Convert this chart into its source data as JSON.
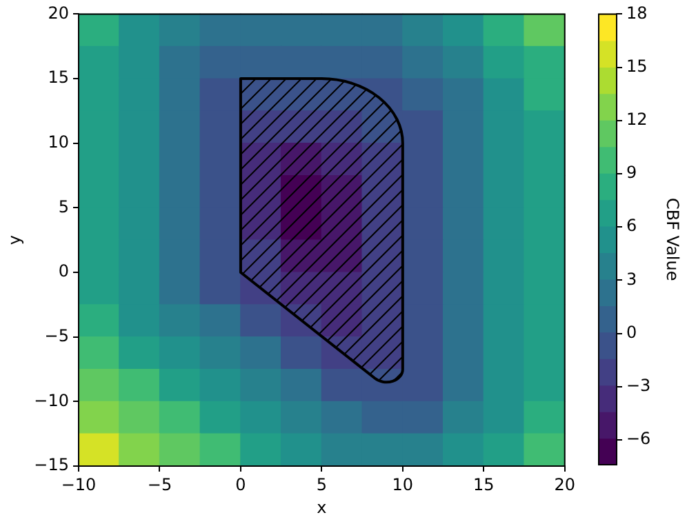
{
  "chart_data": {
    "type": "heatmap",
    "xlabel": "x",
    "ylabel": "y",
    "clabel": "CBF Value",
    "x": [
      -8.75,
      -6.25,
      -3.75,
      -1.25,
      1.25,
      3.75,
      6.25,
      8.75,
      11.25,
      13.75,
      16.25,
      18.75
    ],
    "y": [
      18.75,
      16.25,
      13.75,
      11.25,
      8.75,
      6.25,
      3.75,
      1.25,
      -1.25,
      -3.75,
      -6.25,
      -8.75,
      -11.25,
      -13.75
    ],
    "xlim": [
      -10,
      20
    ],
    "xticks": [
      {
        "value": -10,
        "label": "−10"
      },
      {
        "value": -5,
        "label": "−5"
      },
      0,
      5,
      10,
      15,
      20
    ],
    "ylim": [
      -15,
      20
    ],
    "yticks": [
      {
        "value": -15,
        "label": "−15"
      },
      {
        "value": -10,
        "label": "−10"
      },
      {
        "value": -5,
        "label": "−5"
      },
      0,
      5,
      10,
      15,
      20
    ],
    "clim": [
      -7.4,
      18
    ],
    "cticks": [
      {
        "value": -6,
        "label": "−6"
      },
      {
        "value": -3,
        "label": "−3"
      },
      0,
      3,
      6,
      9,
      12,
      15,
      18
    ],
    "cells": [
      [
        8.2,
        5.7,
        3.5,
        2.1,
        1.8,
        1.8,
        1.9,
        2.7,
        4.0,
        5.8,
        7.9,
        11.0
      ],
      [
        7.4,
        4.7,
        2.0,
        0.3,
        0.5,
        0.5,
        0.6,
        1.2,
        1.9,
        4.0,
        6.4,
        8.8
      ],
      [
        7.3,
        4.6,
        1.8,
        -0.9,
        -0.8,
        -0.8,
        -0.8,
        -1.0,
        0.2,
        2.7,
        5.2,
        7.9
      ],
      [
        7.3,
        4.6,
        1.8,
        -0.9,
        -2.2,
        -2.5,
        -2.2,
        -1.0,
        -0.8,
        1.9,
        4.7,
        7.4
      ],
      [
        7.3,
        4.6,
        1.8,
        -0.9,
        -3.0,
        -5.5,
        -4.0,
        -2.0,
        -0.9,
        1.8,
        4.6,
        7.3
      ],
      [
        7.3,
        4.6,
        1.8,
        -0.9,
        -3.2,
        -6.5,
        -4.8,
        -2.0,
        -0.9,
        1.8,
        4.6,
        7.3
      ],
      [
        7.3,
        4.6,
        1.8,
        -0.9,
        -3.2,
        -6.3,
        -5.0,
        -2.2,
        -0.9,
        1.8,
        4.6,
        7.3
      ],
      [
        7.3,
        4.6,
        1.8,
        -0.9,
        -2.8,
        -4.8,
        -5.2,
        -2.2,
        -0.9,
        1.8,
        4.6,
        7.3
      ],
      [
        7.4,
        4.7,
        2.0,
        -0.4,
        -2.0,
        -3.8,
        -4.0,
        -2.2,
        -0.9,
        1.8,
        4.6,
        7.3
      ],
      [
        8.2,
        5.7,
        3.5,
        1.6,
        -0.4,
        -2.0,
        -3.5,
        -2.2,
        -0.9,
        1.8,
        4.6,
        7.3
      ],
      [
        9.4,
        7.4,
        5.5,
        3.5,
        1.6,
        -0.4,
        -1.8,
        -2.5,
        -0.9,
        1.8,
        4.6,
        7.3
      ],
      [
        11.3,
        9.4,
        7.4,
        5.5,
        3.5,
        1.6,
        -0.4,
        -1.0,
        -0.6,
        2.0,
        4.7,
        7.4
      ],
      [
        13.3,
        11.3,
        9.4,
        7.4,
        5.5,
        3.5,
        1.7,
        0.7,
        1.4,
        3.3,
        5.6,
        8.1
      ],
      [
        15.2,
        13.3,
        11.3,
        9.4,
        7.4,
        5.6,
        4.1,
        3.5,
        3.9,
        5.2,
        7.1,
        9.3
      ]
    ]
  }
}
